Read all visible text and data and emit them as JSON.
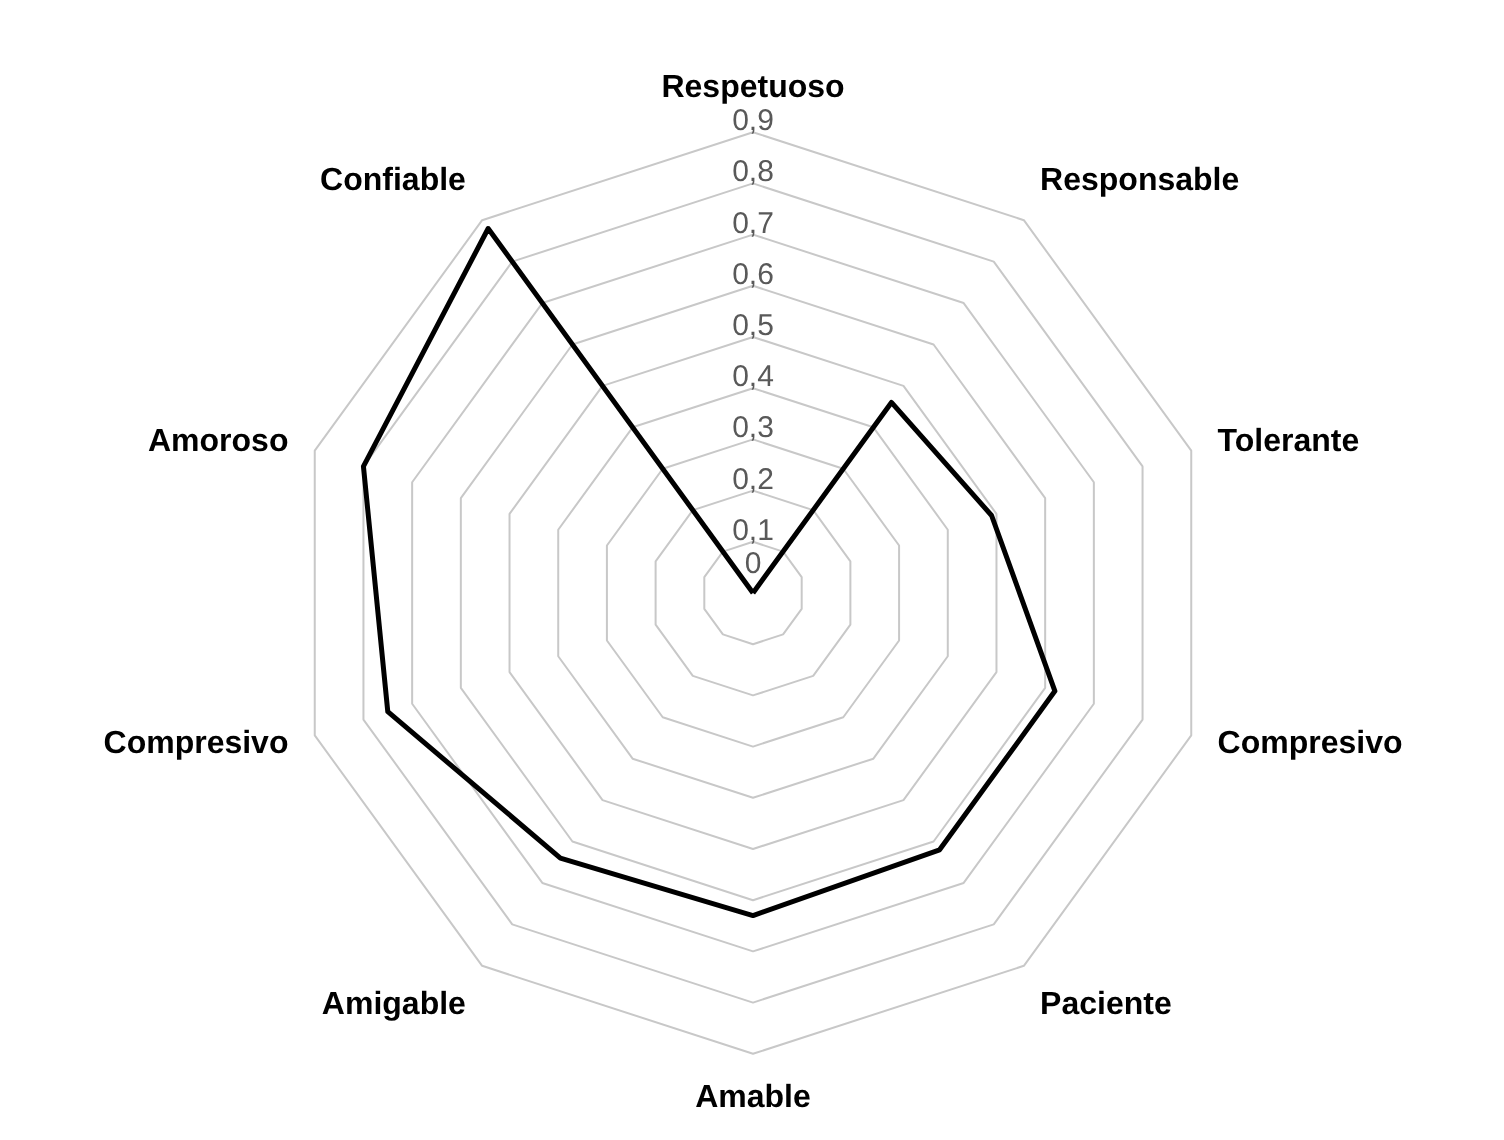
{
  "chart_data": {
    "type": "radar",
    "categories": [
      "Respetuoso",
      "Responsable",
      "Tolerante",
      "Compresivo",
      "Paciente",
      "Amable",
      "Amigable",
      "Compresivo",
      "Amoroso",
      "Confiable"
    ],
    "series": [
      {
        "color": "#000000",
        "values": [
          0,
          0.46,
          0.49,
          0.62,
          0.62,
          0.63,
          0.64,
          0.75,
          0.8,
          0.88
        ]
      }
    ],
    "ylim": [
      0,
      0.9
    ],
    "yticks": [
      {
        "value": 0,
        "label": "0"
      },
      {
        "value": 0.1,
        "label": "0,1"
      },
      {
        "value": 0.2,
        "label": "0,2"
      },
      {
        "value": 0.3,
        "label": "0,3"
      },
      {
        "value": 0.4,
        "label": "0,4"
      },
      {
        "value": 0.5,
        "label": "0,5"
      },
      {
        "value": 0.6,
        "label": "0,6"
      },
      {
        "value": 0.7,
        "label": "0,7"
      },
      {
        "value": 0.8,
        "label": "0,8"
      },
      {
        "value": 0.9,
        "label": "0,9"
      }
    ],
    "grid": true
  }
}
